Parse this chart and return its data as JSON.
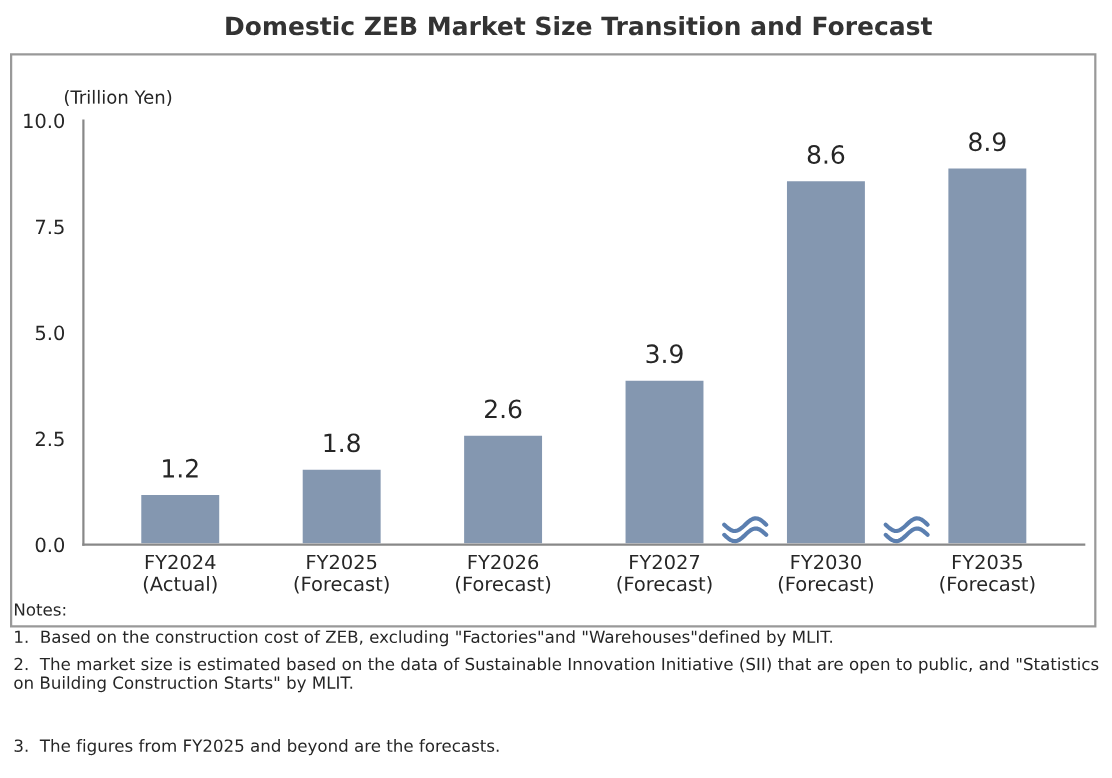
{
  "chart_data": {
    "type": "bar",
    "title": "Domestic ZEB Market Size Transition and Forecast",
    "ylabel": "(Trillion Yen)",
    "categories": [
      "FY2024\n(Actual)",
      "FY2025\n(Forecast)",
      "FY2026\n(Forecast)",
      "FY2027\n(Forecast)",
      "FY2030\n(Forecast)",
      "FY2035\n(Forecast)"
    ],
    "values": [
      1.2,
      1.8,
      2.6,
      3.9,
      8.6,
      8.9
    ],
    "color": "#8497b0",
    "ylim": [
      0,
      10
    ],
    "yticks": [
      {
        "value": 0,
        "label": "0.0"
      },
      {
        "value": 2.5,
        "label": "2.5"
      },
      {
        "value": 5,
        "label": "5.0"
      },
      {
        "value": 7.5,
        "label": "7.5"
      },
      {
        "value": 10,
        "label": "10.0"
      }
    ],
    "data_labels": true,
    "grid": false,
    "legend": false,
    "annotations": [
      "Notes:",
      "1.  Based on the construction cost of ZEB, excluding \"Factories\"and \"Warehouses\"defined by MLIT.",
      "2.  The market size is estimated based on the data of Sustainable Innovation Initiative (SII) that are open to public, and \"Statistics on Building Construction Starts\" by MLIT.",
      "3.  The figures from FY2025 and beyond are the forecasts."
    ]
  }
}
